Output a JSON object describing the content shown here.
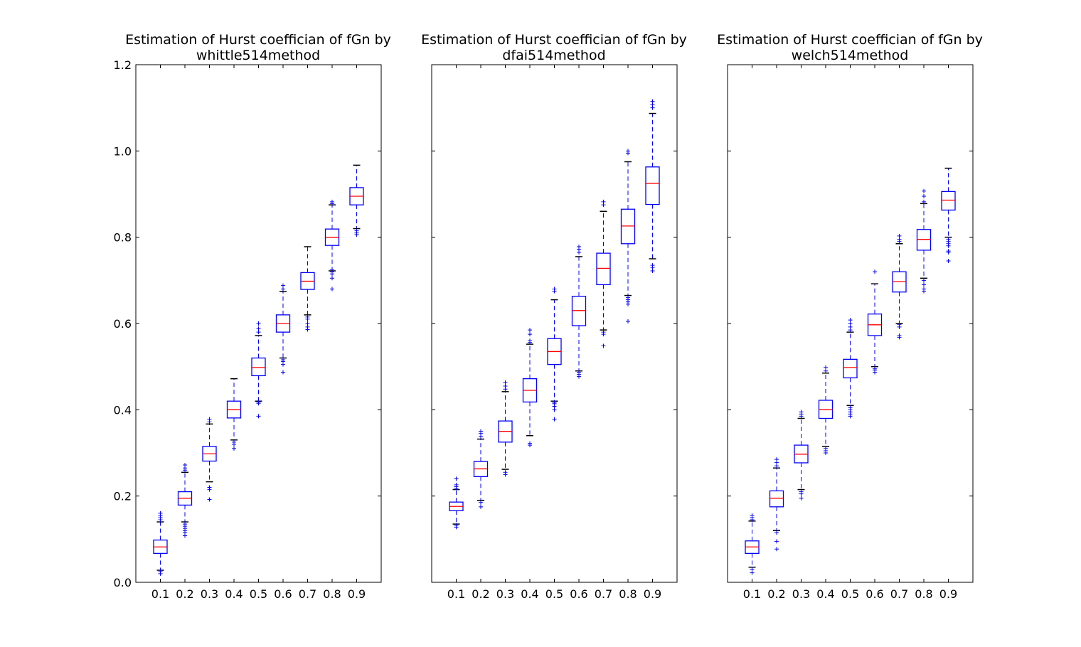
{
  "chart_data": [
    {
      "type": "box",
      "title": [
        "Estimation of Hurst coeffician of fGn by",
        "whittle514method"
      ],
      "xlabel": "",
      "ylabel": "",
      "categories": [
        "0.1",
        "0.2",
        "0.3",
        "0.4",
        "0.5",
        "0.6",
        "0.7",
        "0.8",
        "0.9"
      ],
      "ylim": [
        0.0,
        1.2
      ],
      "yticks": [
        "0.0",
        "0.2",
        "0.4",
        "0.6",
        "0.8",
        "1.0",
        "1.2"
      ],
      "boxes": [
        {
          "whislo": 0.028,
          "q1": 0.067,
          "med": 0.082,
          "q3": 0.098,
          "whishi": 0.14,
          "fliers": [
            0.02,
            0.025,
            0.145,
            0.15,
            0.155,
            0.16
          ]
        },
        {
          "whislo": 0.14,
          "q1": 0.179,
          "med": 0.195,
          "q3": 0.21,
          "whishi": 0.255,
          "fliers": [
            0.108,
            0.115,
            0.12,
            0.125,
            0.13,
            0.135,
            0.26,
            0.265,
            0.272
          ]
        },
        {
          "whislo": 0.233,
          "q1": 0.281,
          "med": 0.298,
          "q3": 0.315,
          "whishi": 0.367,
          "fliers": [
            0.192,
            0.215,
            0.22,
            0.372,
            0.378
          ]
        },
        {
          "whislo": 0.33,
          "q1": 0.381,
          "med": 0.4,
          "q3": 0.42,
          "whishi": 0.472,
          "fliers": [
            0.31,
            0.32,
            0.325
          ]
        },
        {
          "whislo": 0.42,
          "q1": 0.479,
          "med": 0.498,
          "q3": 0.52,
          "whishi": 0.572,
          "fliers": [
            0.385,
            0.415,
            0.418,
            0.58,
            0.588,
            0.6
          ]
        },
        {
          "whislo": 0.52,
          "q1": 0.58,
          "med": 0.6,
          "q3": 0.62,
          "whishi": 0.674,
          "fliers": [
            0.487,
            0.505,
            0.512,
            0.516,
            0.68,
            0.688
          ]
        },
        {
          "whislo": 0.62,
          "q1": 0.679,
          "med": 0.698,
          "q3": 0.718,
          "whishi": 0.778,
          "fliers": [
            0.586,
            0.592,
            0.6,
            0.61,
            0.615
          ]
        },
        {
          "whislo": 0.722,
          "q1": 0.781,
          "med": 0.8,
          "q3": 0.819,
          "whishi": 0.875,
          "fliers": [
            0.68,
            0.705,
            0.715,
            0.72,
            0.725,
            0.878,
            0.882
          ]
        },
        {
          "whislo": 0.82,
          "q1": 0.875,
          "med": 0.895,
          "q3": 0.915,
          "whishi": 0.967,
          "fliers": [
            0.806,
            0.81,
            0.815
          ]
        }
      ]
    },
    {
      "type": "box",
      "title": [
        "Estimation of Hurst coeffician of fGn by",
        "dfai514method"
      ],
      "xlabel": "",
      "ylabel": "",
      "categories": [
        "0.1",
        "0.2",
        "0.3",
        "0.4",
        "0.5",
        "0.6",
        "0.7",
        "0.8",
        "0.9"
      ],
      "ylim": [
        0.0,
        1.2
      ],
      "yticks": [],
      "boxes": [
        {
          "whislo": 0.135,
          "q1": 0.166,
          "med": 0.176,
          "q3": 0.186,
          "whishi": 0.215,
          "fliers": [
            0.128,
            0.132,
            0.218,
            0.222,
            0.226,
            0.24
          ]
        },
        {
          "whislo": 0.19,
          "q1": 0.245,
          "med": 0.263,
          "q3": 0.28,
          "whishi": 0.332,
          "fliers": [
            0.175,
            0.185,
            0.338,
            0.345,
            0.35
          ]
        },
        {
          "whislo": 0.262,
          "q1": 0.325,
          "med": 0.35,
          "q3": 0.374,
          "whishi": 0.442,
          "fliers": [
            0.25,
            0.255,
            0.448,
            0.455,
            0.463
          ]
        },
        {
          "whislo": 0.34,
          "q1": 0.418,
          "med": 0.445,
          "q3": 0.472,
          "whishi": 0.552,
          "fliers": [
            0.318,
            0.322,
            0.556,
            0.56,
            0.575,
            0.585
          ]
        },
        {
          "whislo": 0.42,
          "q1": 0.505,
          "med": 0.535,
          "q3": 0.565,
          "whishi": 0.655,
          "fliers": [
            0.378,
            0.4,
            0.408,
            0.414,
            0.416,
            0.675,
            0.68
          ]
        },
        {
          "whislo": 0.49,
          "q1": 0.595,
          "med": 0.63,
          "q3": 0.663,
          "whishi": 0.755,
          "fliers": [
            0.477,
            0.482,
            0.487,
            0.765,
            0.772,
            0.778
          ]
        },
        {
          "whislo": 0.585,
          "q1": 0.69,
          "med": 0.728,
          "q3": 0.763,
          "whishi": 0.86,
          "fliers": [
            0.548,
            0.575,
            0.58,
            0.875,
            0.882
          ]
        },
        {
          "whislo": 0.665,
          "q1": 0.785,
          "med": 0.826,
          "q3": 0.865,
          "whishi": 0.975,
          "fliers": [
            0.605,
            0.645,
            0.65,
            0.655,
            0.66,
            0.995,
            1.0
          ]
        },
        {
          "whislo": 0.75,
          "q1": 0.876,
          "med": 0.925,
          "q3": 0.963,
          "whishi": 1.087,
          "fliers": [
            0.722,
            0.73,
            0.735,
            1.1,
            1.108,
            1.115
          ]
        }
      ]
    },
    {
      "type": "box",
      "title": [
        "Estimation of Hurst coeffician of fGn by",
        "welch514method"
      ],
      "xlabel": "",
      "ylabel": "",
      "categories": [
        "0.1",
        "0.2",
        "0.3",
        "0.4",
        "0.5",
        "0.6",
        "0.7",
        "0.8",
        "0.9"
      ],
      "ylim": [
        0.0,
        1.2
      ],
      "yticks": [],
      "boxes": [
        {
          "whislo": 0.035,
          "q1": 0.067,
          "med": 0.082,
          "q3": 0.096,
          "whishi": 0.142,
          "fliers": [
            0.022,
            0.03,
            0.145,
            0.15,
            0.155
          ]
        },
        {
          "whislo": 0.12,
          "q1": 0.175,
          "med": 0.195,
          "q3": 0.212,
          "whishi": 0.265,
          "fliers": [
            0.077,
            0.095,
            0.115,
            0.27,
            0.278,
            0.285
          ]
        },
        {
          "whislo": 0.215,
          "q1": 0.277,
          "med": 0.297,
          "q3": 0.318,
          "whishi": 0.38,
          "fliers": [
            0.195,
            0.205,
            0.21,
            0.385,
            0.39,
            0.395
          ]
        },
        {
          "whislo": 0.315,
          "q1": 0.38,
          "med": 0.4,
          "q3": 0.422,
          "whishi": 0.485,
          "fliers": [
            0.3,
            0.305,
            0.31,
            0.49,
            0.498
          ]
        },
        {
          "whislo": 0.41,
          "q1": 0.474,
          "med": 0.498,
          "q3": 0.517,
          "whishi": 0.58,
          "fliers": [
            0.385,
            0.39,
            0.395,
            0.4,
            0.405,
            0.585,
            0.592,
            0.6,
            0.608
          ]
        },
        {
          "whislo": 0.5,
          "q1": 0.572,
          "med": 0.597,
          "q3": 0.622,
          "whishi": 0.692,
          "fliers": [
            0.487,
            0.492,
            0.495,
            0.72
          ]
        },
        {
          "whislo": 0.6,
          "q1": 0.673,
          "med": 0.697,
          "q3": 0.72,
          "whishi": 0.785,
          "fliers": [
            0.568,
            0.572,
            0.592,
            0.598,
            0.79,
            0.795,
            0.803
          ]
        },
        {
          "whislo": 0.705,
          "q1": 0.77,
          "med": 0.795,
          "q3": 0.818,
          "whishi": 0.878,
          "fliers": [
            0.675,
            0.68,
            0.69,
            0.7,
            0.882,
            0.895,
            0.907
          ]
        },
        {
          "whislo": 0.8,
          "q1": 0.863,
          "med": 0.886,
          "q3": 0.906,
          "whishi": 0.96,
          "fliers": [
            0.745,
            0.765,
            0.768,
            0.78,
            0.785,
            0.79,
            0.795
          ]
        }
      ]
    }
  ],
  "colors": {
    "box": "#0000ff",
    "median": "#ff0000",
    "cap": "#000000",
    "flier": "#0000ff",
    "axes": "#000000"
  }
}
